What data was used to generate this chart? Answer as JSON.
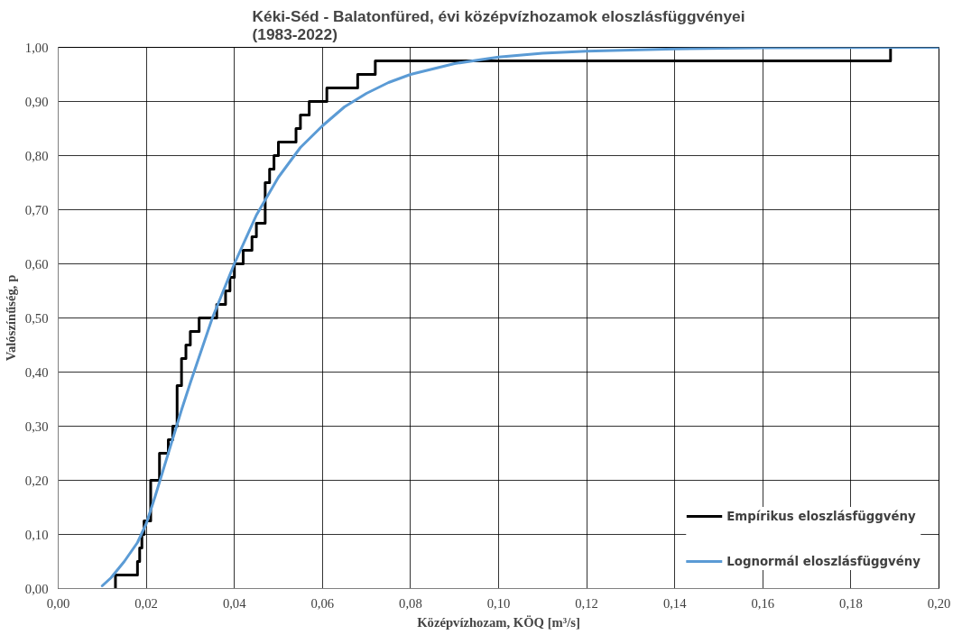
{
  "chart_data": {
    "type": "line",
    "title": "Kéki-Séd - Balatonfüred, évi középvízhozamok eloszlásfüggvényei\n(1983-2022)",
    "xlabel": "Középvízhozam, KÖQ [m³/s]",
    "ylabel": "Valószínűség, p",
    "xlim": [
      0,
      0.2
    ],
    "ylim": [
      0,
      1
    ],
    "xticks": [
      {
        "value": 0,
        "label": "0,00"
      },
      {
        "value": 0.02,
        "label": "0,02"
      },
      {
        "value": 0.04,
        "label": "0,04"
      },
      {
        "value": 0.06,
        "label": "0,06"
      },
      {
        "value": 0.08,
        "label": "0,08"
      },
      {
        "value": 0.1,
        "label": "0,10"
      },
      {
        "value": 0.12,
        "label": "0,12"
      },
      {
        "value": 0.14,
        "label": "0,14"
      },
      {
        "value": 0.16,
        "label": "0,16"
      },
      {
        "value": 0.18,
        "label": "0,18"
      },
      {
        "value": 0.2,
        "label": "0,20"
      }
    ],
    "yticks": [
      {
        "value": 0,
        "label": "0,00"
      },
      {
        "value": 0.1,
        "label": "0,10"
      },
      {
        "value": 0.2,
        "label": "0,20"
      },
      {
        "value": 0.3,
        "label": "0,30"
      },
      {
        "value": 0.4,
        "label": "0,40"
      },
      {
        "value": 0.5,
        "label": "0,50"
      },
      {
        "value": 0.6,
        "label": "0,60"
      },
      {
        "value": 0.7,
        "label": "0,70"
      },
      {
        "value": 0.8,
        "label": "0,80"
      },
      {
        "value": 0.9,
        "label": "0,90"
      },
      {
        "value": 1,
        "label": "1,00"
      }
    ],
    "grid": true,
    "legend": "bottom right",
    "marker": "none",
    "line_style": "solid",
    "series": [
      {
        "name": "Empírikus eloszlásfüggvény",
        "type": "step",
        "color": "#000000",
        "x": [
          0.013,
          0.013,
          0.018,
          0.0185,
          0.019,
          0.0195,
          0.021,
          0.023,
          0.025,
          0.026,
          0.027,
          0.028,
          0.029,
          0.03,
          0.032,
          0.036,
          0.038,
          0.039,
          0.04,
          0.042,
          0.044,
          0.045,
          0.047,
          0.048,
          0.049,
          0.05,
          0.054,
          0.055,
          0.057,
          0.061,
          0.068,
          0.072,
          0.189,
          0.2
        ],
        "values": [
          0,
          0.025,
          0.05,
          0.075,
          0.1,
          0.125,
          0.2,
          0.25,
          0.275,
          0.3,
          0.375,
          0.425,
          0.45,
          0.475,
          0.5,
          0.525,
          0.55,
          0.575,
          0.6,
          0.625,
          0.65,
          0.675,
          0.75,
          0.775,
          0.8,
          0.825,
          0.85,
          0.875,
          0.9,
          0.925,
          0.95,
          0.975,
          1.0,
          1.0
        ]
      },
      {
        "name": "Lognormál eloszlásfüggvény",
        "type": "line",
        "color": "#5b9bd5",
        "x": [
          0.01,
          0.012,
          0.015,
          0.018,
          0.02,
          0.022,
          0.025,
          0.028,
          0.03,
          0.035,
          0.04,
          0.045,
          0.05,
          0.055,
          0.06,
          0.065,
          0.07,
          0.075,
          0.08,
          0.09,
          0.1,
          0.11,
          0.12,
          0.14,
          0.16,
          0.2
        ],
        "values": [
          0.005,
          0.02,
          0.05,
          0.085,
          0.12,
          0.17,
          0.25,
          0.33,
          0.38,
          0.5,
          0.6,
          0.69,
          0.76,
          0.815,
          0.855,
          0.89,
          0.915,
          0.935,
          0.95,
          0.97,
          0.982,
          0.989,
          0.993,
          0.997,
          0.999,
          1.0
        ]
      }
    ]
  }
}
